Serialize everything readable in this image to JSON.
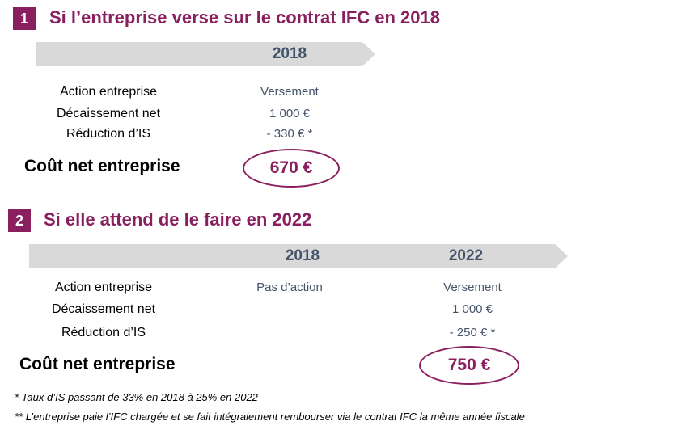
{
  "colors": {
    "accent": "#8a1f5f",
    "band": "#d9d9d9",
    "value_text": "#44546a"
  },
  "section1": {
    "number": "1",
    "title": "Si l’entreprise verse sur le contrat IFC en 2018",
    "year": "2018",
    "rows": [
      {
        "label": "Action entreprise",
        "value": "Versement"
      },
      {
        "label": "Décaissement  net",
        "value": "1 000 €"
      },
      {
        "label": "Réduction  d’IS",
        "value": "- 330 € *"
      }
    ],
    "cost_label": "Coût net entreprise",
    "cost_value": "670 €"
  },
  "section2": {
    "number": "2",
    "title": "Si elle attend de le faire en 2022",
    "year1": "2018",
    "year2": "2022",
    "rows": [
      {
        "label": "Action entreprise",
        "value1": "Pas d’action",
        "value2": "Versement"
      },
      {
        "label": "Décaissement  net",
        "value1": "",
        "value2": "1 000 €"
      },
      {
        "label": "Réduction  d’IS",
        "value1": "",
        "value2": "- 250 € *"
      }
    ],
    "cost_label": "Coût net entreprise",
    "cost_value": "750 €"
  },
  "footnotes": [
    "* Taux d’IS passant de 33% en 2018 à 25% en 2022",
    "** L’entreprise paie l’IFC chargée et se fait intégralement rembourser via le contrat IFC la même année fiscale"
  ]
}
